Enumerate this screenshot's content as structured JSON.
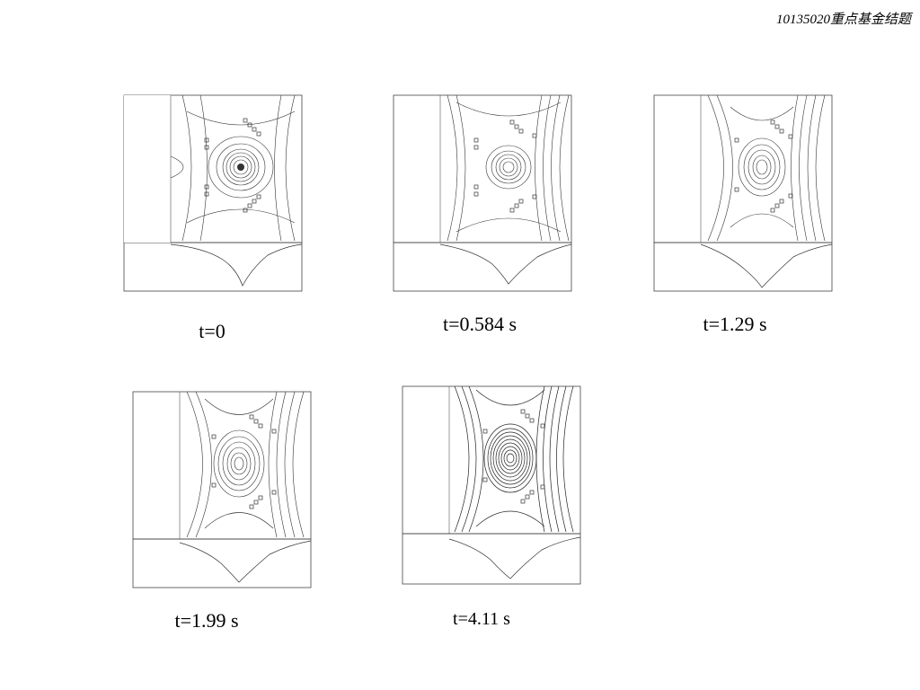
{
  "header": {
    "text": "10135020重点基金结题"
  },
  "figures": [
    {
      "caption": "t=0"
    },
    {
      "caption": "t=0.584 s"
    },
    {
      "caption": "t=1.29 s"
    },
    {
      "caption": "t=1.99 s"
    },
    {
      "caption": "t=4.11 s"
    }
  ]
}
